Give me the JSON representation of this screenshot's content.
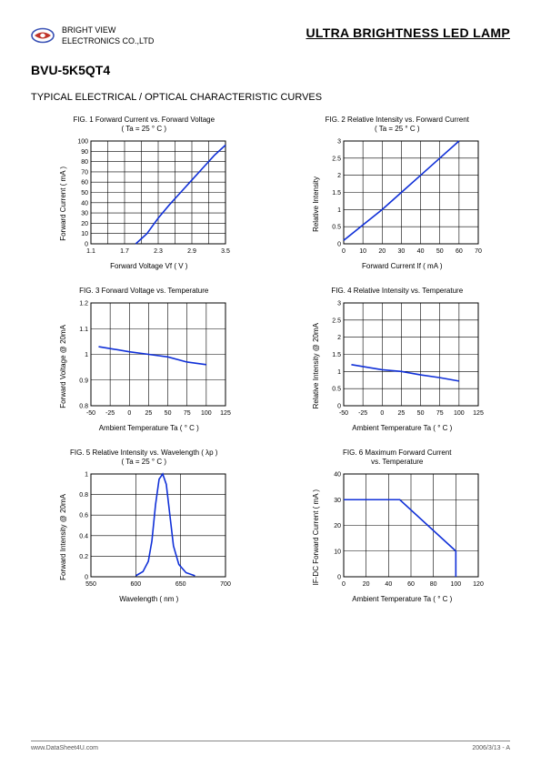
{
  "header": {
    "company_line1": "BRIGHT VIEW",
    "company_line2": "ELECTRONICS CO.,LTD",
    "product_title": "ULTRA BRIGHTNESS LED LAMP"
  },
  "part_no": "BVU-5K5QT4",
  "section_title": "TYPICAL ELECTRICAL / OPTICAL CHARACTERISTIC CURVES",
  "logo": {
    "outer_color": "#3a52b5",
    "inner_color": "#c0342a"
  },
  "charts": [
    {
      "title": "FIG. 1   Forward Current vs. Forward Voltage\n( Ta = 25 ° C )",
      "xlabel": "Forward Voltage Vf ( V )",
      "ylabel": "Forward Current ( mA )",
      "xlim": [
        1.1,
        3.5
      ],
      "xticks": [
        1.1,
        1.7,
        2.3,
        2.9,
        3.5
      ],
      "ylim": [
        0,
        100
      ],
      "yticks": [
        0,
        10,
        20,
        30,
        40,
        50,
        60,
        70,
        80,
        90,
        100
      ],
      "xgrid_sub": 2,
      "ygrid_sub": 1,
      "series": [
        [
          1.9,
          0
        ],
        [
          2.0,
          5
        ],
        [
          2.1,
          10
        ],
        [
          2.3,
          25
        ],
        [
          2.5,
          38
        ],
        [
          2.7,
          50
        ],
        [
          2.9,
          62
        ],
        [
          3.1,
          74
        ],
        [
          3.3,
          86
        ],
        [
          3.5,
          96
        ]
      ],
      "line_color": "#1030d8"
    },
    {
      "title": "FIG. 2   Relative Intensity vs. Forward Current\n( Ta = 25 ° C )",
      "xlabel": "Forward Current If ( mA )",
      "ylabel": "Relative Intensity",
      "xlim": [
        0,
        70
      ],
      "xticks": [
        0,
        10,
        20,
        30,
        40,
        50,
        60,
        70
      ],
      "ylim": [
        0,
        3.0
      ],
      "yticks": [
        0,
        0.5,
        1.0,
        1.5,
        2.0,
        2.5,
        3.0
      ],
      "xgrid_sub": 1,
      "ygrid_sub": 1,
      "series": [
        [
          0,
          0.1
        ],
        [
          10,
          0.55
        ],
        [
          20,
          1.0
        ],
        [
          30,
          1.5
        ],
        [
          40,
          2.0
        ],
        [
          50,
          2.5
        ],
        [
          60,
          3.0
        ]
      ],
      "line_color": "#1030d8"
    },
    {
      "title": "FIG. 3   Forward Voltage vs. Temperature",
      "xlabel": "Ambient Temperature Ta ( ° C )",
      "ylabel": "Forward Voltage @ 20mA",
      "xlim": [
        -50,
        125
      ],
      "xticks": [
        -50,
        -25,
        0,
        25,
        50,
        75,
        100,
        125
      ],
      "ylim": [
        0.8,
        1.2
      ],
      "yticks": [
        0.8,
        0.9,
        1.0,
        1.1,
        1.2
      ],
      "xgrid_sub": 1,
      "ygrid_sub": 1,
      "series": [
        [
          -40,
          1.03
        ],
        [
          0,
          1.01
        ],
        [
          25,
          1.0
        ],
        [
          50,
          0.99
        ],
        [
          75,
          0.97
        ],
        [
          100,
          0.96
        ]
      ],
      "line_color": "#1030d8"
    },
    {
      "title": "FIG. 4   Relative Intensity vs. Temperature",
      "xlabel": "Ambient Temperature Ta ( ° C )",
      "ylabel": "Relative Intensity @ 20mA",
      "xlim": [
        -50,
        125
      ],
      "xticks": [
        -50,
        -25,
        0,
        25,
        50,
        75,
        100,
        125
      ],
      "ylim": [
        0,
        3.0
      ],
      "yticks": [
        0,
        0.5,
        1.0,
        1.5,
        2.0,
        2.5,
        3.0
      ],
      "xgrid_sub": 1,
      "ygrid_sub": 1,
      "series": [
        [
          -40,
          1.2
        ],
        [
          0,
          1.05
        ],
        [
          25,
          1.0
        ],
        [
          50,
          0.9
        ],
        [
          75,
          0.82
        ],
        [
          100,
          0.72
        ]
      ],
      "line_color": "#1030d8"
    },
    {
      "title": "FIG. 5   Relative Intensity vs. Wavelength ( λp )\n( Ta = 25 ° C )",
      "xlabel": "Wavelength ( nm )",
      "ylabel": "Forward Intensity @ 20mA",
      "xlim": [
        550,
        700
      ],
      "xticks": [
        550,
        600,
        650,
        700
      ],
      "ylim": [
        0,
        1.0
      ],
      "yticks": [
        0,
        0.2,
        0.4,
        0.6,
        0.8,
        1.0
      ],
      "xgrid_sub": 1,
      "ygrid_sub": 1,
      "series": [
        [
          600,
          0.01
        ],
        [
          608,
          0.05
        ],
        [
          614,
          0.15
        ],
        [
          618,
          0.35
        ],
        [
          622,
          0.7
        ],
        [
          626,
          0.95
        ],
        [
          630,
          1.0
        ],
        [
          634,
          0.9
        ],
        [
          638,
          0.6
        ],
        [
          642,
          0.3
        ],
        [
          648,
          0.12
        ],
        [
          656,
          0.04
        ],
        [
          666,
          0.01
        ]
      ],
      "line_color": "#1030d8"
    },
    {
      "title": "FIG. 6   Maximum Forward Current\nvs. Temperature",
      "xlabel": "Ambient Temperature Ta ( ° C )",
      "ylabel": "IF-DC  Forward Current ( mA )",
      "xlim": [
        0,
        120
      ],
      "xticks": [
        0,
        20,
        40,
        60,
        80,
        100,
        120
      ],
      "ylim": [
        0,
        40
      ],
      "yticks": [
        0,
        10,
        20,
        30,
        40
      ],
      "xgrid_sub": 1,
      "ygrid_sub": 1,
      "series": [
        [
          0,
          30
        ],
        [
          50,
          30
        ],
        [
          100,
          10
        ],
        [
          100,
          0
        ]
      ],
      "line_color": "#1030d8"
    }
  ],
  "plot_style": {
    "width": 180,
    "height": 135,
    "margin": {
      "l": 26,
      "r": 6,
      "t": 4,
      "b": 18
    },
    "grid_color": "#000000",
    "bg_color": "#ffffff",
    "tick_fontsize": 7
  },
  "footer": {
    "left": "www.DataSheet4U.com",
    "right": "2006/3/13 - A"
  }
}
